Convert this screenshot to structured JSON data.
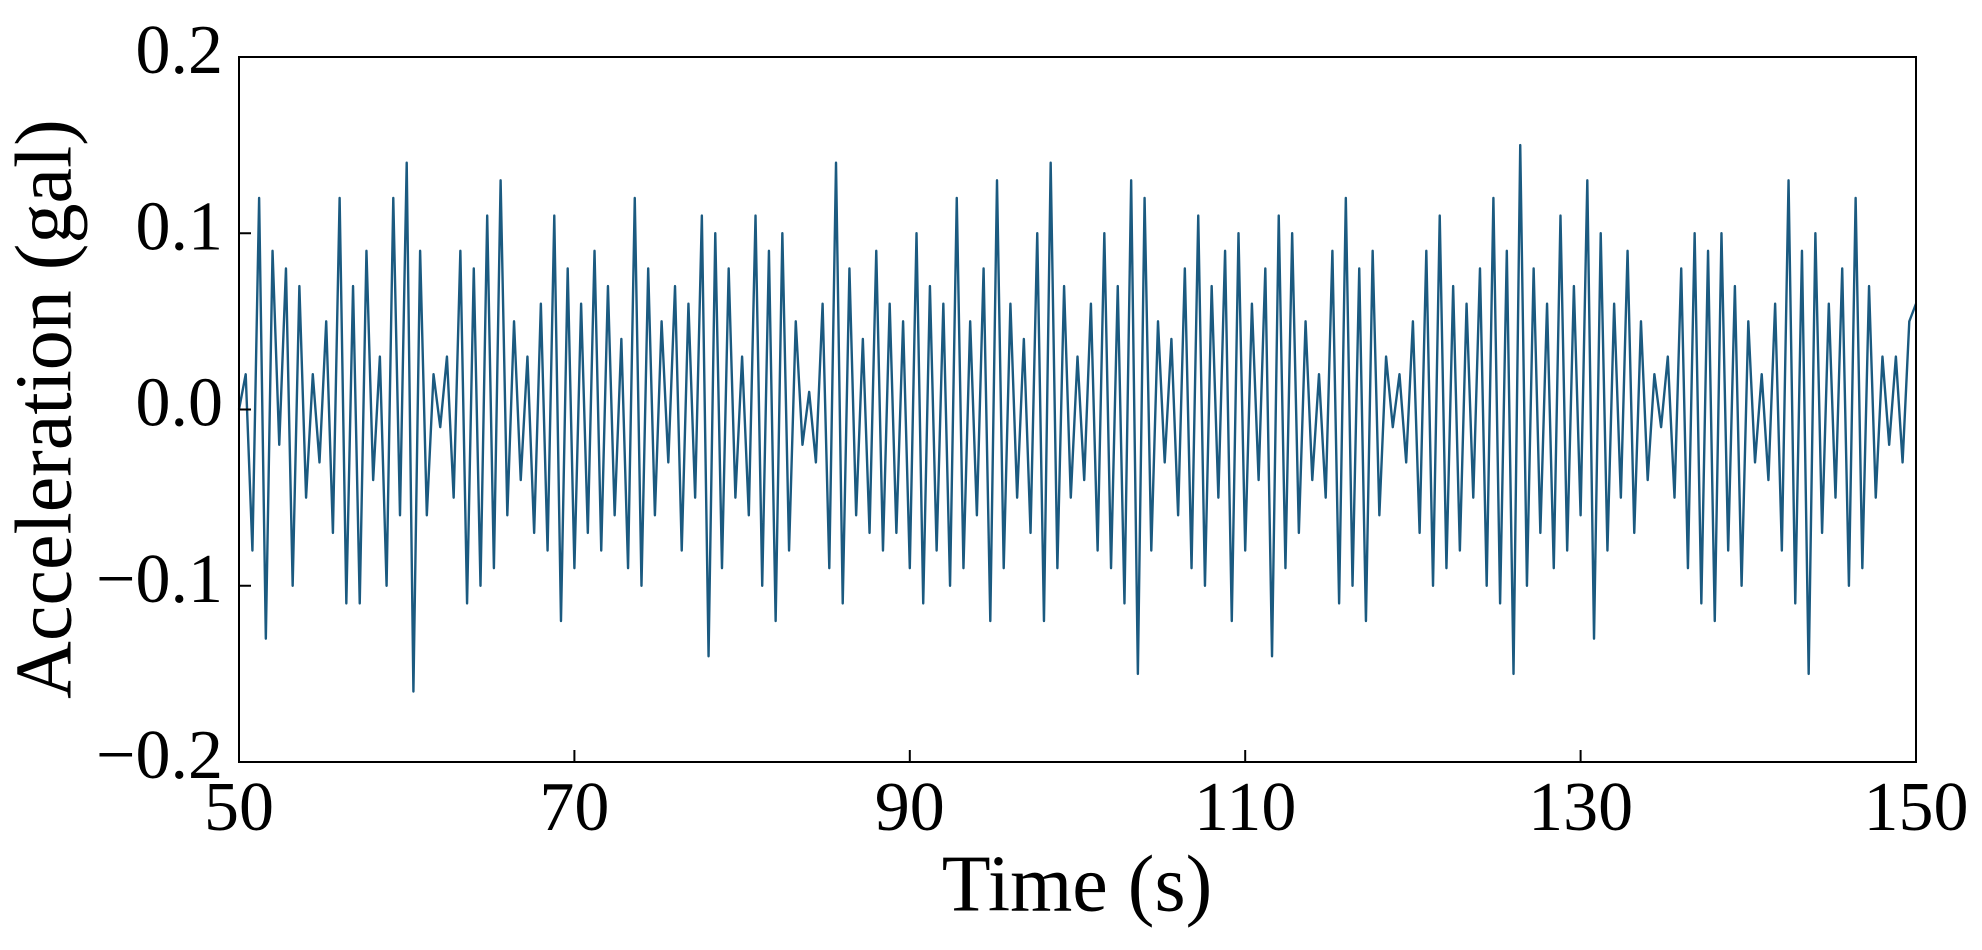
{
  "chart_data": {
    "type": "line",
    "xlabel": "Time (s)",
    "ylabel": "Acceleration (gal)",
    "color": "#1b5a80",
    "xlim": [
      50,
      150
    ],
    "xticks": [
      50,
      70,
      90,
      110,
      130,
      150
    ],
    "ylim": [
      -0.2,
      0.2
    ],
    "yticks": [
      {
        "value": -0.2,
        "label": "−0.2"
      },
      {
        "value": -0.1,
        "label": "−0.1"
      },
      {
        "value": 0,
        "label": "0.0"
      },
      0.1,
      0.2
    ],
    "x": [
      50,
      50.4,
      50.8,
      51.2,
      51.6,
      52,
      52.4,
      52.8,
      53.2,
      53.6,
      54,
      54.4,
      54.8,
      55.2,
      55.6,
      56,
      56.4,
      56.8,
      57.2,
      57.6,
      58,
      58.4,
      58.8,
      59.2,
      59.6,
      60,
      60.4,
      60.8,
      61.2,
      61.6,
      62,
      62.4,
      62.8,
      63.2,
      63.6,
      64,
      64.4,
      64.8,
      65.2,
      65.6,
      66,
      66.4,
      66.8,
      67.2,
      67.6,
      68,
      68.4,
      68.8,
      69.2,
      69.6,
      70,
      70.4,
      70.8,
      71.2,
      71.6,
      72,
      72.4,
      72.8,
      73.2,
      73.6,
      74,
      74.4,
      74.8,
      75.2,
      75.6,
      76,
      76.4,
      76.8,
      77.2,
      77.6,
      78,
      78.4,
      78.8,
      79.2,
      79.6,
      80,
      80.4,
      80.8,
      81.2,
      81.6,
      82,
      82.4,
      82.8,
      83.2,
      83.6,
      84,
      84.4,
      84.8,
      85.2,
      85.6,
      86,
      86.4,
      86.8,
      87.2,
      87.6,
      88,
      88.4,
      88.8,
      89.2,
      89.6,
      90,
      90.4,
      90.8,
      91.2,
      91.6,
      92,
      92.4,
      92.8,
      93.2,
      93.6,
      94,
      94.4,
      94.8,
      95.2,
      95.6,
      96,
      96.4,
      96.8,
      97.2,
      97.6,
      98,
      98.4,
      98.8,
      99.2,
      99.6,
      100,
      100.4,
      100.8,
      101.2,
      101.6,
      102,
      102.4,
      102.8,
      103.2,
      103.6,
      104,
      104.4,
      104.8,
      105.2,
      105.6,
      106,
      106.4,
      106.8,
      107.2,
      107.6,
      108,
      108.4,
      108.8,
      109.2,
      109.6,
      110,
      110.4,
      110.8,
      111.2,
      111.6,
      112,
      112.4,
      112.8,
      113.2,
      113.6,
      114,
      114.4,
      114.8,
      115.2,
      115.6,
      116,
      116.4,
      116.8,
      117.2,
      117.6,
      118,
      118.4,
      118.8,
      119.2,
      119.6,
      120,
      120.4,
      120.8,
      121.2,
      121.6,
      122,
      122.4,
      122.8,
      123.2,
      123.6,
      124,
      124.4,
      124.8,
      125.2,
      125.6,
      126,
      126.4,
      126.8,
      127.2,
      127.6,
      128,
      128.4,
      128.8,
      129.2,
      129.6,
      130,
      130.4,
      130.8,
      131.2,
      131.6,
      132,
      132.4,
      132.8,
      133.2,
      133.6,
      134,
      134.4,
      134.8,
      135.2,
      135.6,
      136,
      136.4,
      136.8,
      137.2,
      137.6,
      138,
      138.4,
      138.8,
      139.2,
      139.6,
      140,
      140.4,
      140.8,
      141.2,
      141.6,
      142,
      142.4,
      142.8,
      143.2,
      143.6,
      144,
      144.4,
      144.8,
      145.2,
      145.6,
      146,
      146.4,
      146.8,
      147.2,
      147.6,
      148,
      148.4,
      148.8,
      149.2,
      149.6,
      150
    ],
    "values": [
      0,
      0.02,
      -0.08,
      0.12,
      -0.13,
      0.09,
      -0.02,
      0.08,
      -0.1,
      0.07,
      -0.05,
      0.02,
      -0.03,
      0.05,
      -0.07,
      0.12,
      -0.11,
      0.07,
      -0.11,
      0.09,
      -0.04,
      0.03,
      -0.1,
      0.12,
      -0.06,
      0.14,
      -0.16,
      0.09,
      -0.06,
      0.02,
      -0.01,
      0.03,
      -0.05,
      0.09,
      -0.11,
      0.08,
      -0.1,
      0.11,
      -0.09,
      0.13,
      -0.06,
      0.05,
      -0.04,
      0.03,
      -0.07,
      0.06,
      -0.08,
      0.11,
      -0.12,
      0.08,
      -0.09,
      0.06,
      -0.07,
      0.09,
      -0.08,
      0.07,
      -0.06,
      0.04,
      -0.09,
      0.12,
      -0.1,
      0.08,
      -0.06,
      0.05,
      -0.03,
      0.07,
      -0.08,
      0.06,
      -0.05,
      0.11,
      -0.14,
      0.1,
      -0.09,
      0.08,
      -0.05,
      0.03,
      -0.06,
      0.11,
      -0.1,
      0.09,
      -0.12,
      0.1,
      -0.08,
      0.05,
      -0.02,
      0.01,
      -0.03,
      0.06,
      -0.09,
      0.14,
      -0.11,
      0.08,
      -0.06,
      0.04,
      -0.07,
      0.09,
      -0.08,
      0.06,
      -0.07,
      0.05,
      -0.09,
      0.1,
      -0.11,
      0.07,
      -0.08,
      0.06,
      -0.1,
      0.12,
      -0.09,
      0.05,
      -0.06,
      0.08,
      -0.12,
      0.13,
      -0.09,
      0.06,
      -0.05,
      0.04,
      -0.07,
      0.1,
      -0.12,
      0.14,
      -0.09,
      0.07,
      -0.05,
      0.03,
      -0.04,
      0.06,
      -0.08,
      0.1,
      -0.09,
      0.07,
      -0.11,
      0.13,
      -0.15,
      0.12,
      -0.08,
      0.05,
      -0.03,
      0.04,
      -0.06,
      0.08,
      -0.09,
      0.11,
      -0.1,
      0.07,
      -0.05,
      0.09,
      -0.12,
      0.1,
      -0.08,
      0.06,
      -0.04,
      0.08,
      -0.14,
      0.11,
      -0.09,
      0.1,
      -0.07,
      0.05,
      -0.04,
      0.02,
      -0.05,
      0.09,
      -0.11,
      0.12,
      -0.1,
      0.08,
      -0.12,
      0.09,
      -0.06,
      0.03,
      -0.01,
      0.02,
      -0.03,
      0.05,
      -0.07,
      0.09,
      -0.1,
      0.11,
      -0.09,
      0.07,
      -0.08,
      0.06,
      -0.05,
      0.08,
      -0.1,
      0.12,
      -0.11,
      0.09,
      -0.15,
      0.15,
      -0.1,
      0.08,
      -0.07,
      0.06,
      -0.09,
      0.11,
      -0.08,
      0.07,
      -0.06,
      0.13,
      -0.13,
      0.1,
      -0.08,
      0.06,
      -0.05,
      0.09,
      -0.07,
      0.05,
      -0.04,
      0.02,
      -0.01,
      0.03,
      -0.05,
      0.08,
      -0.09,
      0.1,
      -0.11,
      0.09,
      -0.12,
      0.1,
      -0.08,
      0.07,
      -0.1,
      0.05,
      -0.03,
      0.02,
      -0.04,
      0.06,
      -0.08,
      0.13,
      -0.11,
      0.09,
      -0.15,
      0.1,
      -0.07,
      0.06,
      -0.05,
      0.08,
      -0.1,
      0.12,
      -0.09,
      0.07,
      -0.05,
      0.03,
      -0.02,
      0.03,
      -0.03,
      0.05,
      0.06
    ]
  }
}
